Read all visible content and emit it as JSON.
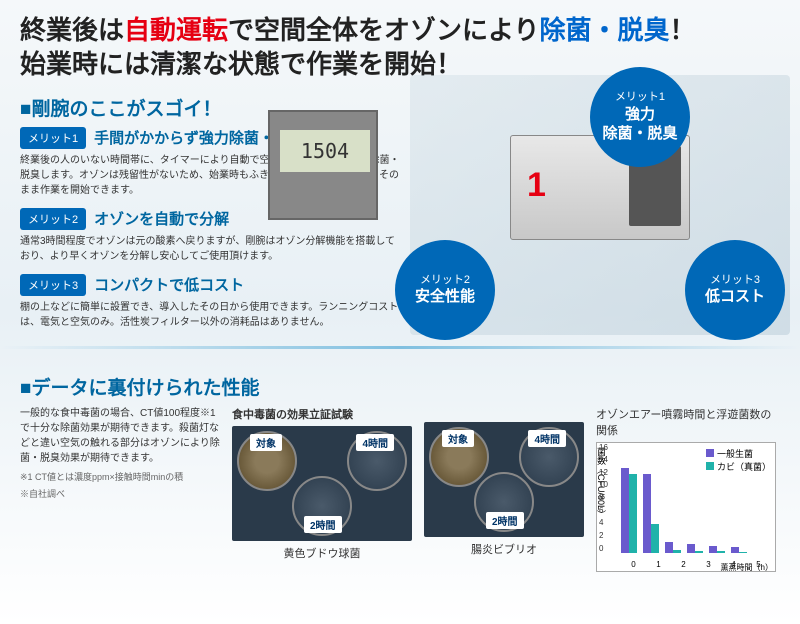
{
  "headline": {
    "pre1": "終業後は",
    "red": "自動運転",
    "mid": "で空間全体をオゾンにより",
    "blue": "除菌・脱臭",
    "post1": "！",
    "line2": "始業時には清潔な状態で作業を開始！"
  },
  "section1_title": "■剛腕のここがスゴイ！",
  "merits": [
    {
      "badge": "メリット1",
      "title": "手間がかからず強力除菌・脱臭",
      "desc": "終業後の人のいない時間帯に、タイマーにより自動で空間全体をオゾンの力で除菌・脱臭します。オゾンは残留性がないため、始業時もふき取りなどの手間もなく、そのまま作業を開始できます。"
    },
    {
      "badge": "メリット2",
      "title": "オゾンを自動で分解",
      "desc": "通常3時間程度でオゾンは元の酸素へ戻りますが、剛腕はオゾン分解機能を搭載しており、より早くオゾンを分解し安心してご使用頂けます。"
    },
    {
      "badge": "メリット3",
      "title": "コンパクトで低コスト",
      "desc": "棚の上などに簡単に設置でき、導入したその日から使用できます。ランニングコストは、電気と空気のみ。活性炭フィルター以外の消耗品はありません。"
    }
  ],
  "circles": {
    "c1": {
      "label": "メリット1",
      "text": "強力\n除菌・脱臭"
    },
    "c2": {
      "label": "メリット2",
      "text": "安全性能"
    },
    "c3": {
      "label": "メリット3",
      "text": "低コスト"
    }
  },
  "timer_display": "1504",
  "section2_title": "■データに裏付けられた性能",
  "data_text": "一般的な食中毒菌の場合、CT値100程度※1で十分な除菌効果が期待できます。殺菌灯などと違い空気の触れる部分はオゾンにより除菌・脱臭効果が期待できます。",
  "footnote1": "※1 CT値とは濃度ppm×接触時間minの積",
  "footnote2": "※自社調べ",
  "petri": {
    "group_title": "食中毒菌の効果立証試験",
    "tags": {
      "control": "対象",
      "t4": "4時間",
      "t2": "2時間"
    },
    "caption1": "黄色ブドウ球菌",
    "caption2": "腸炎ビブリオ"
  },
  "chart": {
    "title": "オゾンエアー噴霧時間と浮遊菌数の関係",
    "ylabel": "菌数（CFU/80L）",
    "xlabel": "薫蒸時間（h）",
    "legend": [
      {
        "name": "一般生菌",
        "color": "#6a5acd"
      },
      {
        "name": "カビ（真菌）",
        "color": "#20b2aa"
      }
    ],
    "ymax": 16,
    "yticks": [
      16,
      14,
      12,
      10,
      8,
      6,
      4,
      2,
      0
    ],
    "xcats": [
      "0",
      "1",
      "2",
      "3",
      "4",
      "5"
    ],
    "series1": [
      15,
      14,
      1.8,
      1.5,
      1.2,
      1
    ],
    "series2": [
      14,
      5,
      0.5,
      0.3,
      0.2,
      0.1
    ],
    "colors": {
      "s1": "#6a5acd",
      "s2": "#20b2aa"
    }
  }
}
